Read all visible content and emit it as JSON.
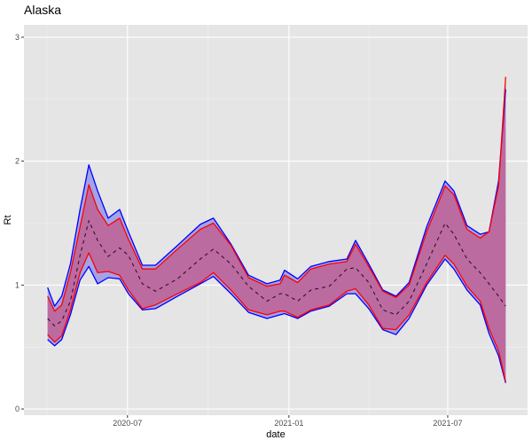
{
  "chart_data": {
    "type": "area",
    "title": "Alaska",
    "xlabel": "date",
    "ylabel": "Rt",
    "ylim": [
      -0.05,
      3.1
    ],
    "xlim": [
      "2020-03-05",
      "2021-09-30"
    ],
    "y_ticks": [
      "0",
      "1",
      "2",
      "3"
    ],
    "x_ticks": [
      {
        "date": "2020-07-01",
        "label": "2020-07"
      },
      {
        "date": "2021-01-01",
        "label": "2021-01"
      },
      {
        "date": "2021-07-01",
        "label": "2021-07"
      }
    ],
    "grid": true,
    "colors": {
      "outer_line": "#0000ff",
      "inner_line": "#ff0000",
      "outer_fill": "#a3a3e8",
      "inner_fill": "#bb6ba0",
      "median": "#3a0c2c",
      "panel": "#e5e5e5"
    },
    "x": [
      "2020-04-01",
      "2020-04-09",
      "2020-04-17",
      "2020-04-27",
      "2020-05-08",
      "2020-05-18",
      "2020-05-28",
      "2020-06-09",
      "2020-06-22",
      "2020-07-02",
      "2020-07-18",
      "2020-08-02",
      "2020-08-27",
      "2020-09-22",
      "2020-10-07",
      "2020-10-27",
      "2020-11-16",
      "2020-12-07",
      "2020-12-22",
      "2020-12-27",
      "2021-01-11",
      "2021-01-26",
      "2021-02-16",
      "2021-03-08",
      "2021-03-18",
      "2021-04-02",
      "2021-04-18",
      "2021-05-03",
      "2021-05-18",
      "2021-06-07",
      "2021-06-28",
      "2021-07-08",
      "2021-07-23",
      "2021-08-07",
      "2021-08-17",
      "2021-08-28",
      "2021-09-05"
    ],
    "series": [
      {
        "name": "outer_upper",
        "values": [
          0.98,
          0.83,
          0.91,
          1.17,
          1.61,
          1.97,
          1.76,
          1.54,
          1.61,
          1.43,
          1.16,
          1.16,
          1.32,
          1.49,
          1.54,
          1.33,
          1.08,
          1.01,
          1.04,
          1.12,
          1.05,
          1.15,
          1.19,
          1.21,
          1.36,
          1.17,
          0.96,
          0.91,
          1.02,
          1.47,
          1.84,
          1.76,
          1.48,
          1.41,
          1.43,
          1.84,
          2.58
        ]
      },
      {
        "name": "inner_upper",
        "values": [
          0.91,
          0.79,
          0.84,
          1.1,
          1.47,
          1.81,
          1.61,
          1.48,
          1.54,
          1.37,
          1.13,
          1.13,
          1.29,
          1.45,
          1.5,
          1.32,
          1.06,
          0.99,
          1.01,
          1.08,
          1.02,
          1.13,
          1.17,
          1.19,
          1.33,
          1.15,
          0.95,
          0.9,
          1.0,
          1.43,
          1.8,
          1.73,
          1.45,
          1.38,
          1.43,
          1.8,
          2.68
        ]
      },
      {
        "name": "median",
        "values": [
          0.73,
          0.67,
          0.71,
          0.87,
          1.24,
          1.52,
          1.36,
          1.23,
          1.3,
          1.24,
          1.01,
          0.95,
          1.05,
          1.21,
          1.29,
          1.17,
          0.99,
          0.87,
          0.93,
          0.93,
          0.87,
          0.96,
          0.99,
          1.13,
          1.14,
          1.02,
          0.8,
          0.76,
          0.87,
          1.17,
          1.5,
          1.41,
          1.21,
          1.1,
          1.01,
          0.91,
          0.83
        ]
      },
      {
        "name": "inner_lower",
        "values": [
          0.6,
          0.54,
          0.59,
          0.8,
          1.1,
          1.26,
          1.1,
          1.11,
          1.08,
          0.96,
          0.81,
          0.84,
          0.93,
          1.02,
          1.1,
          0.96,
          0.8,
          0.76,
          0.79,
          0.79,
          0.74,
          0.8,
          0.84,
          0.95,
          0.97,
          0.84,
          0.65,
          0.64,
          0.76,
          1.02,
          1.24,
          1.17,
          0.99,
          0.87,
          0.65,
          0.47,
          0.22
        ]
      },
      {
        "name": "outer_lower",
        "values": [
          0.56,
          0.51,
          0.56,
          0.76,
          1.04,
          1.15,
          1.01,
          1.06,
          1.05,
          0.93,
          0.8,
          0.81,
          0.91,
          1.01,
          1.07,
          0.93,
          0.78,
          0.73,
          0.76,
          0.77,
          0.73,
          0.79,
          0.83,
          0.93,
          0.93,
          0.81,
          0.64,
          0.6,
          0.73,
          1.0,
          1.21,
          1.13,
          0.96,
          0.84,
          0.61,
          0.43,
          0.21
        ]
      }
    ]
  }
}
